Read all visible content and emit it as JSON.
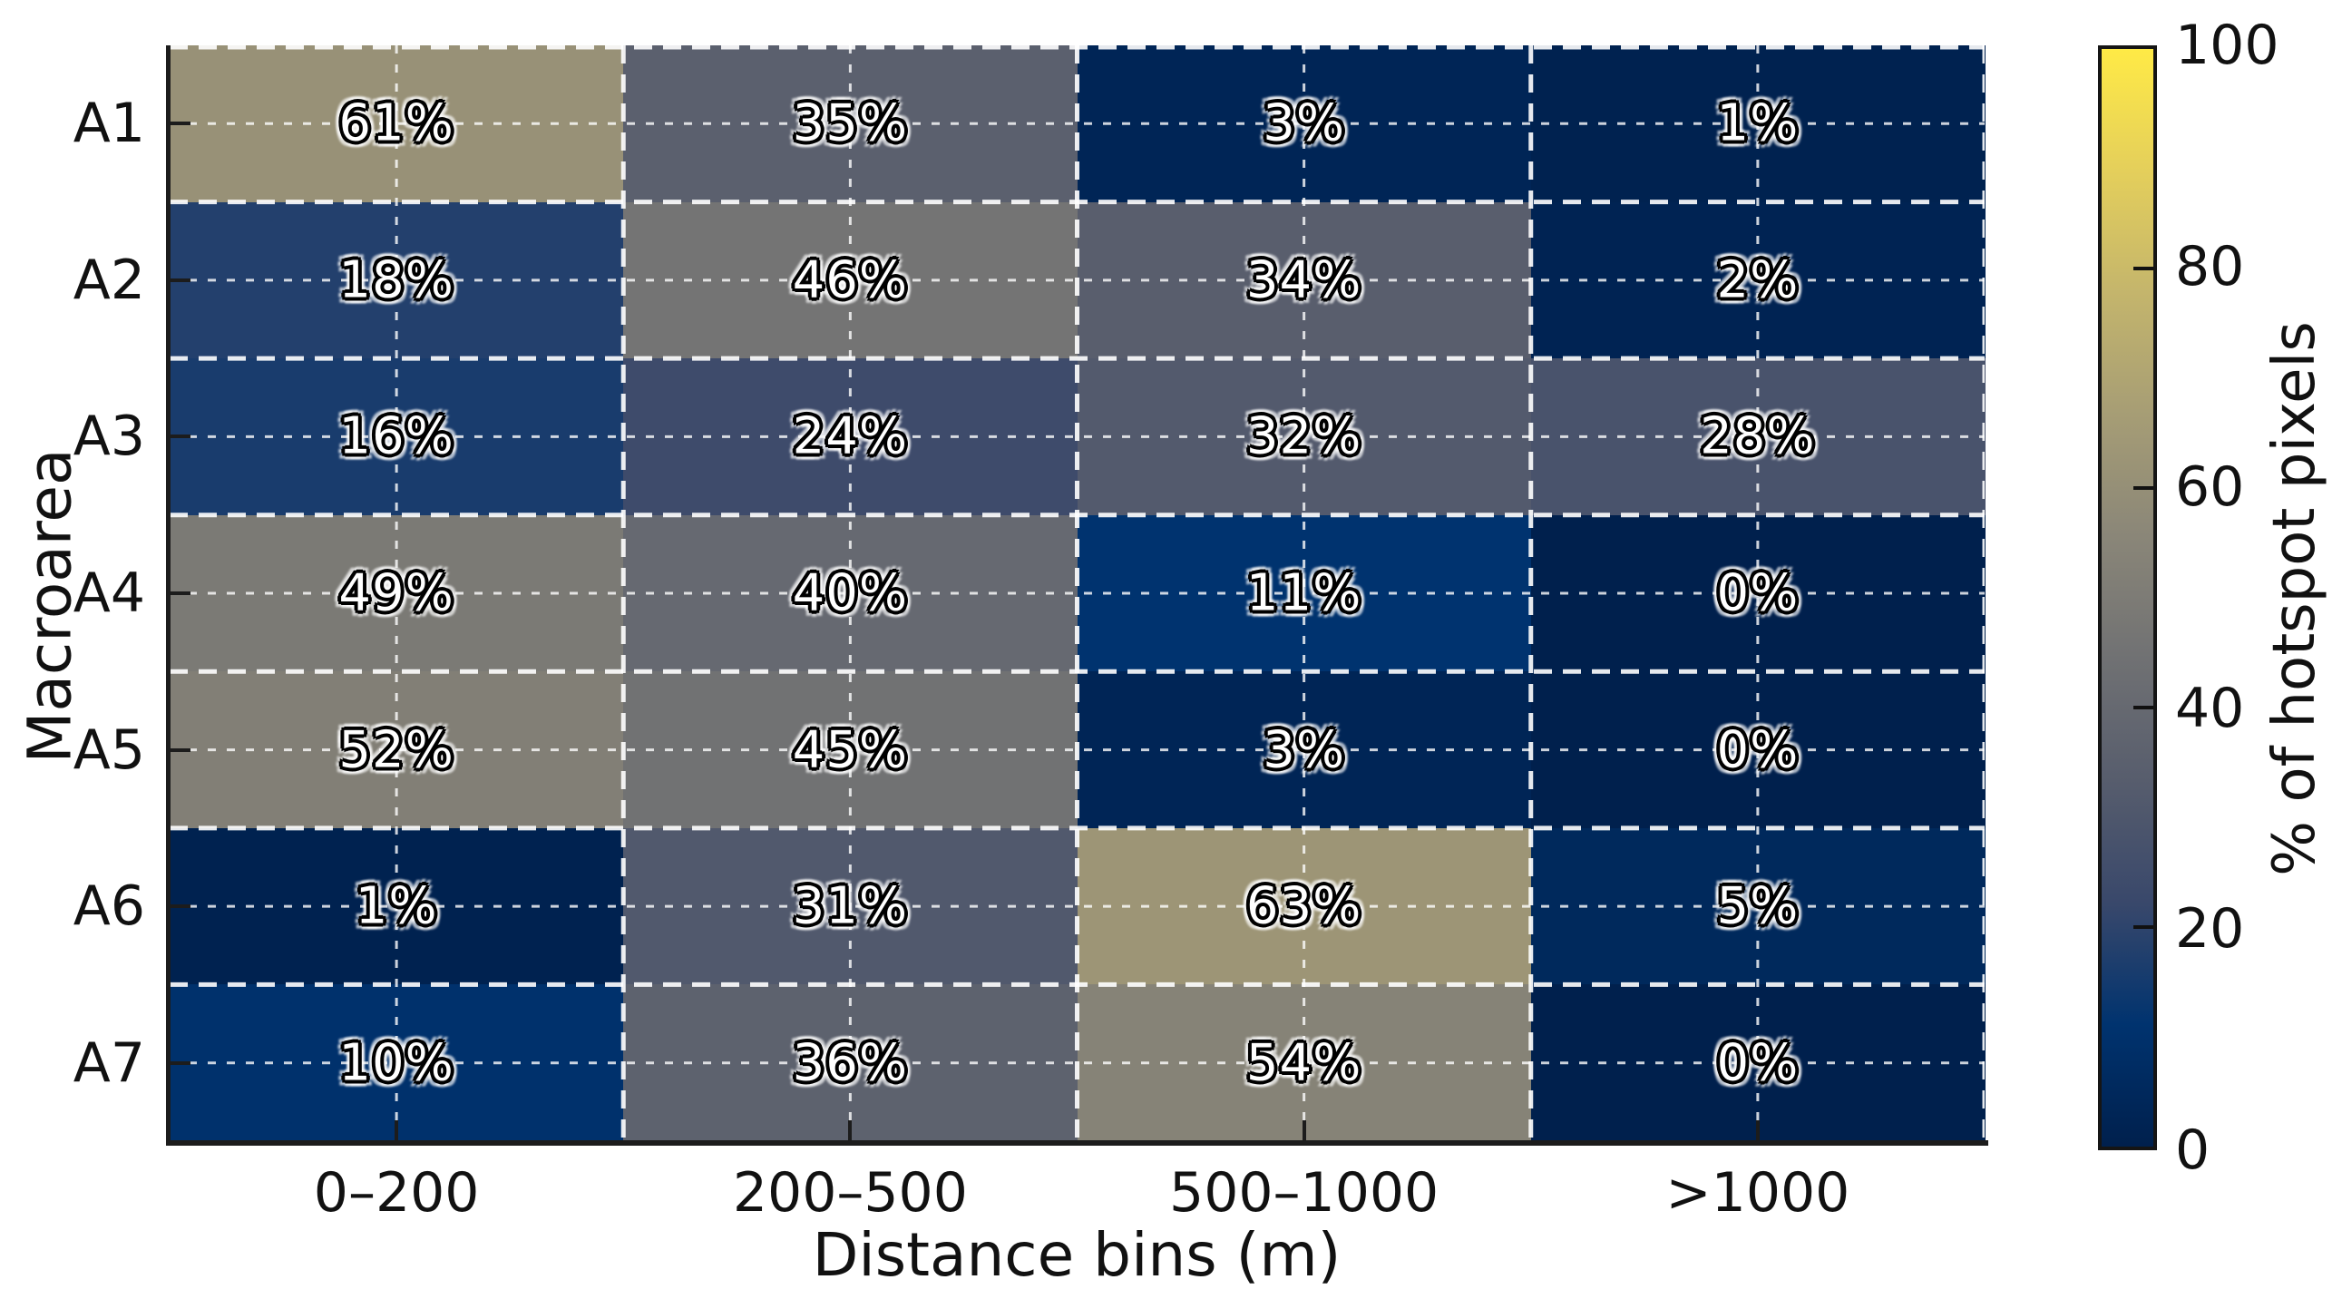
{
  "chart_data": {
    "type": "heatmap",
    "title": "",
    "xlabel": "Distance bins (m)",
    "ylabel": "Macroarea",
    "colorbar_label": "% of hotspot pixels",
    "x_categories": [
      "0–200",
      "200–500",
      "500–1000",
      ">1000"
    ],
    "y_categories": [
      "A1",
      "A2",
      "A3",
      "A4",
      "A5",
      "A6",
      "A7"
    ],
    "values": [
      [
        61,
        35,
        3,
        1
      ],
      [
        18,
        46,
        34,
        2
      ],
      [
        16,
        24,
        32,
        28
      ],
      [
        49,
        40,
        11,
        0
      ],
      [
        52,
        45,
        3,
        0
      ],
      [
        1,
        31,
        63,
        5
      ],
      [
        10,
        36,
        54,
        0
      ]
    ],
    "cell_label_suffix": "%",
    "vmin": 0,
    "vmax": 100,
    "colormap": "cividis",
    "colormap_stops": [
      "#00204D",
      "#00336F",
      "#39486B",
      "#575D6D",
      "#707173",
      "#8A8678",
      "#A69D75",
      "#C4B56C",
      "#E4CF5B",
      "#FFEA46"
    ],
    "colorbar_tick_labels": [
      "100",
      "80",
      "60",
      "40",
      "20",
      "0"
    ],
    "colorbar_tick_values": [
      100,
      80,
      60,
      40,
      20,
      0
    ],
    "gridline_color": "#FFFFFF",
    "grid_on": true,
    "legend_position": "right-colorbar"
  }
}
